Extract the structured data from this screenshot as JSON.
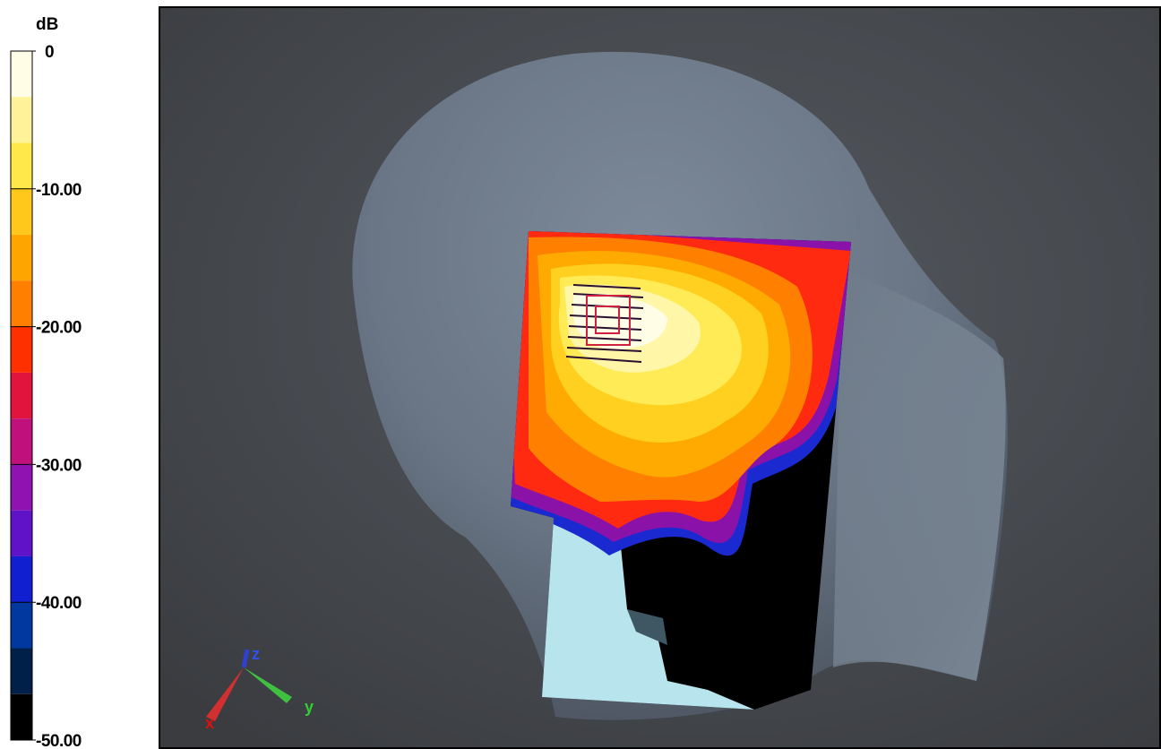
{
  "colorbar": {
    "title": "dB",
    "lim": [
      0,
      -50
    ],
    "ticks": [
      0,
      {
        "value": -10,
        "label": "-10.00"
      },
      {
        "value": -20,
        "label": "-20.00"
      },
      {
        "value": -30,
        "label": "-30.00"
      },
      {
        "value": -40,
        "label": "-40.00"
      },
      {
        "value": -50,
        "label": "-50.00"
      }
    ],
    "colors": [
      "#fffde6",
      "#fff39a",
      "#ffe84a",
      "#ffc81a",
      "#ffa500",
      "#ff7f00",
      "#ff3000",
      "#e0143c",
      "#c0107c",
      "#9012b0",
      "#6012c8",
      "#1020d0",
      "#0038a0",
      "#00204a",
      "#000000"
    ]
  },
  "axis_triad": {
    "x": "x",
    "y": "y",
    "z": "z"
  }
}
